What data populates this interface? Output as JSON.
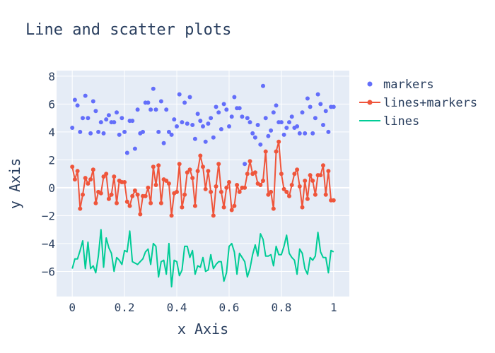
{
  "chart_data": {
    "type": "scatter",
    "title": "Line and scatter plots",
    "xlabel": "x Axis",
    "ylabel": "y Axis",
    "xlim": [
      -0.06,
      1.06
    ],
    "ylim": [
      -7.8,
      8.4
    ],
    "x_ticks": [
      0,
      0.2,
      0.4,
      0.6,
      0.8,
      1
    ],
    "x_tick_labels": [
      "0",
      "0.2",
      "0.4",
      "0.6",
      "0.8",
      "1"
    ],
    "y_ticks": [
      -6,
      -4,
      -2,
      0,
      2,
      4,
      6,
      8
    ],
    "y_tick_labels": [
      "−6",
      "−4",
      "−2",
      "0",
      "2",
      "4",
      "6",
      "8"
    ],
    "grid": true,
    "legend_position": "right",
    "x": [
      0,
      0.01,
      0.02,
      0.03,
      0.04,
      0.05,
      0.06,
      0.07,
      0.08,
      0.09,
      0.1,
      0.11,
      0.12,
      0.13,
      0.14,
      0.15,
      0.16,
      0.17,
      0.18,
      0.19,
      0.2,
      0.21,
      0.22,
      0.23,
      0.24,
      0.25,
      0.26,
      0.27,
      0.28,
      0.29,
      0.3,
      0.31,
      0.32,
      0.33,
      0.34,
      0.35,
      0.36,
      0.37,
      0.38,
      0.39,
      0.4,
      0.41,
      0.42,
      0.43,
      0.44,
      0.45,
      0.46,
      0.47,
      0.48,
      0.49,
      0.5,
      0.51,
      0.52,
      0.53,
      0.54,
      0.55,
      0.56,
      0.57,
      0.58,
      0.59,
      0.6,
      0.61,
      0.62,
      0.63,
      0.64,
      0.65,
      0.66,
      0.67,
      0.68,
      0.69,
      0.7,
      0.71,
      0.72,
      0.73,
      0.74,
      0.75,
      0.76,
      0.77,
      0.78,
      0.79,
      0.8,
      0.81,
      0.82,
      0.83,
      0.84,
      0.85,
      0.86,
      0.87,
      0.88,
      0.89,
      0.9,
      0.91,
      0.92,
      0.93,
      0.94,
      0.95,
      0.96,
      0.97,
      0.98,
      0.99,
      1
    ],
    "series": [
      {
        "name": "markers",
        "mode": "markers",
        "color": "#636efa",
        "values": [
          4.3,
          6.3,
          5.9,
          4.0,
          5.0,
          6.6,
          5.0,
          3.9,
          6.2,
          5.5,
          4.0,
          4.7,
          3.9,
          4.9,
          5.2,
          4.7,
          4.7,
          5.4,
          3.8,
          5.0,
          4.0,
          2.5,
          4.8,
          4.8,
          2.8,
          5.6,
          3.9,
          4.0,
          6.1,
          6.1,
          5.6,
          7.1,
          5.6,
          4.0,
          6.2,
          3.2,
          5.6,
          4.0,
          3.8,
          4.9,
          4.4,
          6.7,
          4.7,
          6.1,
          4.6,
          6.5,
          4.5,
          3.5,
          5.3,
          4.8,
          4.4,
          3.3,
          4.6,
          5.0,
          3.6,
          5.8,
          5.4,
          4.2,
          6.0,
          5.6,
          4.4,
          5.1,
          6.5,
          5.7,
          5.7,
          5.1,
          1.7,
          5.0,
          4.7,
          3.9,
          3.6,
          4.5,
          3.1,
          7.3,
          5.0,
          3.7,
          4.1,
          5.4,
          5.9,
          4.7,
          4.7,
          3.8,
          4.3,
          4.7,
          5.1,
          4.3,
          4.4,
          3.9,
          5.4,
          3.9,
          6.4,
          5.8,
          3.9,
          5.0,
          6.7,
          6.0,
          4.5,
          5.5,
          4.0,
          5.8,
          5.8
        ]
      },
      {
        "name": "lines+markers",
        "mode": "lines+markers",
        "color": "#ef553b",
        "values": [
          1.5,
          0.6,
          1.2,
          -1.5,
          -0.5,
          0.7,
          0.3,
          0.6,
          1.3,
          -1.1,
          -0.3,
          -0.4,
          0.8,
          1.0,
          -0.8,
          -0.5,
          0.8,
          -1.1,
          0.5,
          0.4,
          0.4,
          -1.0,
          -1.3,
          -0.6,
          -0.2,
          -0.5,
          -1.9,
          -0.6,
          -0.6,
          0.0,
          -1.1,
          1.5,
          0.2,
          1.6,
          -1.1,
          0.6,
          0.5,
          0.3,
          -2.0,
          -0.4,
          -0.3,
          1.7,
          -1.4,
          -0.5,
          1.1,
          1.3,
          0.7,
          -1.3,
          1.2,
          2.3,
          1.5,
          -0.1,
          1.2,
          -0.3,
          -2.0,
          0.1,
          1.7,
          -0.3,
          -1.4,
          0.0,
          0.4,
          -1.6,
          -1.3,
          0.2,
          -0.3,
          0.0,
          0.0,
          1.0,
          1.9,
          1.0,
          1.1,
          0.3,
          0.2,
          0.5,
          2.6,
          -0.5,
          -0.3,
          -1.5,
          2.6,
          3.3,
          1.0,
          -0.1,
          -0.3,
          -0.6,
          0.2,
          1.0,
          1.3,
          0.1,
          -1.4,
          0.5,
          -0.8,
          0.9,
          0.5,
          -0.5,
          0.9,
          0.9,
          1.6,
          -0.5,
          1.2,
          -0.9,
          -0.9
        ]
      },
      {
        "name": "lines",
        "mode": "lines",
        "color": "#00cc96",
        "values": [
          -5.8,
          -5.1,
          -5.1,
          -4.5,
          -3.8,
          -5.8,
          -3.9,
          -5.8,
          -5.6,
          -6.1,
          -4.9,
          -3.0,
          -5.7,
          -3.6,
          -4.3,
          -4.7,
          -6.0,
          -5.0,
          -5.2,
          -5.5,
          -4.5,
          -4.6,
          -3.1,
          -5.3,
          -5.4,
          -5.5,
          -5.3,
          -5.1,
          -4.6,
          -4.4,
          -5.5,
          -4.0,
          -4.2,
          -6.4,
          -5.3,
          -5.2,
          -6.2,
          -4.0,
          -7.1,
          -5.2,
          -5.3,
          -6.3,
          -5.9,
          -4.2,
          -4.2,
          -5.0,
          -4.5,
          -6.2,
          -5.6,
          -5.7,
          -5.0,
          -6.0,
          -5.9,
          -4.8,
          -5.8,
          -5.5,
          -5.3,
          -5.3,
          -6.7,
          -6.1,
          -4.2,
          -4.0,
          -4.6,
          -6.2,
          -4.7,
          -5.0,
          -5.3,
          -6.4,
          -5.8,
          -4.8,
          -4.1,
          -4.9,
          -3.3,
          -3.7,
          -4.9,
          -4.9,
          -4.8,
          -5.6,
          -4.2,
          -4.8,
          -4.8,
          -4.2,
          -3.4,
          -4.7,
          -5.0,
          -5.2,
          -6.2,
          -4.4,
          -4.7,
          -5.8,
          -6.2,
          -5.0,
          -5.2,
          -4.9,
          -3.2,
          -4.6,
          -5.0,
          -5.0,
          -6.1,
          -4.5,
          -4.6
        ]
      }
    ]
  }
}
